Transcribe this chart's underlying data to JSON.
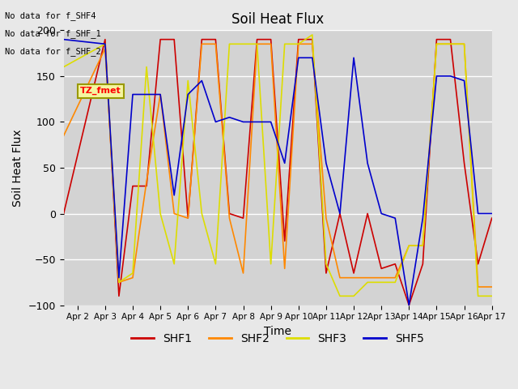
{
  "title": "Soil Heat Flux",
  "xlabel": "Time",
  "ylabel": "Soil Heat Flux",
  "ylim": [
    -100,
    200
  ],
  "x_tick_labels": [
    "Apr 2",
    "Apr 3",
    "Apr 4",
    "Apr 5",
    "Apr 6",
    "Apr 7",
    "Apr 8",
    "Apr 9",
    "Apr 10",
    "Apr 11",
    "Apr 12",
    "Apr 13",
    "Apr 14",
    "Apr 15",
    "Apr 16",
    "Apr 17"
  ],
  "annotations": [
    "No data for f_SHF4",
    "No data for f_SHF_1",
    "No data for f_SHF_2"
  ],
  "tz_label": "TZ_fmet",
  "legend_labels": [
    "SHF1",
    "SHF2",
    "SHF3",
    "SHF5"
  ],
  "legend_colors": [
    "#cc0000",
    "#ff8800",
    "#dddd00",
    "#0000cc"
  ],
  "line_colors": {
    "SHF1": "#cc0000",
    "SHF2": "#ff8800",
    "SHF3": "#dddd00",
    "SHF5": "#0000cc"
  },
  "background_color": "#e8e8e8",
  "plot_bg_color": "#d3d3d3",
  "SHF1_x": [
    0.5,
    2,
    2,
    2.5,
    2.5,
    3,
    3,
    3.5,
    3.5,
    4,
    4,
    4.5,
    4.5,
    5,
    5,
    5.5,
    5.5,
    6,
    6,
    6.5,
    6.5,
    7,
    7,
    7.5,
    7.5,
    8,
    8,
    8.5,
    8.5,
    9,
    9,
    9.5,
    9.5,
    10,
    10,
    10.5,
    10.5,
    11,
    11,
    11.5,
    11.5,
    12,
    12,
    12.5,
    12.5,
    13,
    13,
    13.5,
    13.5,
    14,
    14,
    14.5,
    14.5,
    15,
    15,
    15.5,
    15.5,
    16
  ],
  "SHF1_y": [
    0,
    190,
    190,
    -90,
    -90,
    30,
    30,
    30,
    30,
    190,
    190,
    190,
    190,
    -5,
    -5,
    190,
    190,
    190,
    190,
    0,
    0,
    -5,
    -5,
    190,
    190,
    190,
    190,
    -30,
    -30,
    190,
    190,
    190,
    190,
    -65,
    -65,
    0,
    0,
    -65,
    -65,
    0,
    0,
    -60,
    -60,
    -55,
    -55,
    -100,
    -100,
    -55,
    -55,
    190,
    190,
    190,
    190,
    55,
    55,
    -55,
    -55,
    -5
  ],
  "SHF2_x": [
    0.5,
    2,
    2,
    2.5,
    2.5,
    3,
    3,
    3.5,
    3.5,
    4,
    4,
    4.5,
    4.5,
    5,
    5,
    5.5,
    5.5,
    6,
    6,
    6.5,
    6.5,
    7,
    7,
    7.5,
    7.5,
    8,
    8,
    8.5,
    8.5,
    9,
    9,
    9.5,
    9.5,
    10,
    10,
    10.5,
    10.5,
    11,
    11,
    11.5,
    11.5,
    12,
    12,
    12.5,
    12.5,
    13,
    13,
    13.5,
    13.5,
    14,
    14,
    14.5,
    14.5,
    15,
    15,
    15.5,
    15.5,
    16
  ],
  "SHF2_y": [
    85,
    180,
    180,
    -75,
    -75,
    -70,
    -70,
    35,
    35,
    130,
    130,
    0,
    0,
    -5,
    -5,
    185,
    185,
    185,
    185,
    -5,
    -5,
    -65,
    -65,
    185,
    185,
    185,
    185,
    -60,
    -60,
    185,
    185,
    185,
    185,
    -5,
    -5,
    -70,
    -70,
    -70,
    -70,
    -70,
    -70,
    -70,
    -70,
    -70,
    -70,
    -35,
    -35,
    -35,
    -35,
    185,
    185,
    185,
    185,
    185,
    185,
    -80,
    -80,
    -80
  ],
  "SHF3_x": [
    0.5,
    2,
    2,
    2.5,
    2.5,
    3,
    3,
    3.5,
    3.5,
    4,
    4,
    4.5,
    4.5,
    5,
    5,
    5.5,
    5.5,
    6,
    6,
    6.5,
    6.5,
    7,
    7,
    7.5,
    7.5,
    8,
    8,
    8.5,
    8.5,
    9,
    9,
    9.5,
    9.5,
    10,
    10,
    10.5,
    10.5,
    11,
    11,
    11.5,
    11.5,
    12,
    12,
    12.5,
    12.5,
    13,
    13,
    13.5,
    13.5,
    14,
    14,
    14.5,
    14.5,
    15,
    15,
    15.5,
    15.5,
    16
  ],
  "SHF3_y": [
    160,
    185,
    185,
    -75,
    -75,
    -65,
    -65,
    160,
    160,
    0,
    0,
    -55,
    -55,
    145,
    145,
    0,
    0,
    -55,
    -55,
    185,
    185,
    185,
    185,
    185,
    185,
    -55,
    -55,
    185,
    185,
    185,
    185,
    195,
    195,
    -55,
    -55,
    -90,
    -90,
    -90,
    -90,
    -75,
    -75,
    -75,
    -75,
    -75,
    -75,
    -35,
    -35,
    -35,
    -35,
    185,
    185,
    185,
    185,
    185,
    185,
    -90,
    -90,
    -90
  ],
  "SHF5_x": [
    0.5,
    2,
    2,
    2.5,
    2.5,
    3,
    3,
    3.5,
    3.5,
    4,
    4,
    4.5,
    4.5,
    5,
    5,
    5.5,
    5.5,
    6,
    6,
    6.5,
    6.5,
    7,
    7,
    7.5,
    7.5,
    8,
    8,
    8.5,
    8.5,
    9,
    9,
    9.5,
    9.5,
    10,
    10,
    10.5,
    10.5,
    11,
    11,
    11.5,
    11.5,
    12,
    12,
    12.5,
    12.5,
    13,
    13,
    13.5,
    13.5,
    14,
    14,
    14.5,
    14.5,
    15,
    15,
    15.5,
    15.5,
    16
  ],
  "SHF5_y": [
    190,
    185,
    185,
    -70,
    -70,
    130,
    130,
    130,
    130,
    130,
    130,
    20,
    20,
    130,
    130,
    145,
    145,
    100,
    100,
    105,
    105,
    100,
    100,
    100,
    100,
    100,
    100,
    55,
    55,
    170,
    170,
    170,
    170,
    55,
    55,
    0,
    0,
    170,
    170,
    55,
    55,
    0,
    0,
    -5,
    -5,
    -100,
    -100,
    -5,
    -5,
    150,
    150,
    150,
    150,
    145,
    145,
    0,
    0,
    0
  ]
}
